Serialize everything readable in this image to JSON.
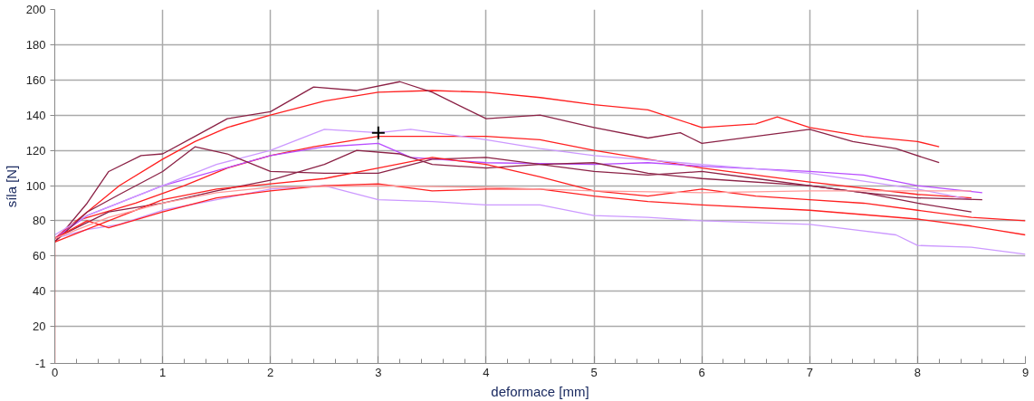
{
  "chart_data": {
    "type": "line",
    "xlabel": "deformace [mm]",
    "ylabel": "síla [N]",
    "xlim": [
      0,
      9
    ],
    "ylim": [
      -1,
      200
    ],
    "xticks": [
      0,
      1,
      2,
      3,
      4,
      5,
      6,
      7,
      8,
      9
    ],
    "yticks": [
      {
        "value": -1,
        "label": "-1"
      },
      20,
      40,
      60,
      80,
      100,
      120,
      140,
      160,
      180,
      200
    ],
    "grid": true,
    "marker": "none",
    "line_style": "solid",
    "series": [
      {
        "color": "#ff2020",
        "x": [
          0,
          0.3,
          0.6,
          1,
          1.3,
          1.6,
          2,
          2.5,
          3,
          3.5,
          4,
          4.5,
          5,
          5.5,
          6,
          6.5,
          6.7,
          7,
          7.5,
          8,
          8.2
        ],
        "values": [
          70,
          85,
          100,
          115,
          125,
          133,
          140,
          148,
          153,
          154,
          153,
          150,
          146,
          143,
          133,
          135,
          139,
          133,
          128,
          125,
          122
        ]
      },
      {
        "color": "#8b2246",
        "x": [
          0,
          0.3,
          0.5,
          0.8,
          1,
          1.3,
          1.6,
          2,
          2.4,
          2.8,
          3.2,
          3.5,
          4,
          4.5,
          5,
          5.5,
          5.8,
          6,
          6.5,
          7,
          7.4,
          7.8,
          8.2
        ],
        "values": [
          68,
          90,
          108,
          117,
          118,
          128,
          138,
          142,
          156,
          154,
          159,
          153,
          138,
          140,
          133,
          127,
          130,
          124,
          128,
          132,
          125,
          121,
          113
        ]
      },
      {
        "color": "#ff2020",
        "x": [
          0,
          0,
          0.2,
          0.75,
          1.2,
          1.6,
          2,
          2.4,
          2.8,
          3,
          4,
          4.5,
          5,
          5.5,
          6,
          7,
          8,
          8.5
        ],
        "values": [
          -1,
          70,
          80,
          90,
          100,
          110,
          117,
          122,
          126,
          128,
          128,
          126,
          120,
          115,
          110,
          102,
          95,
          93
        ]
      },
      {
        "color": "#b84dff",
        "x": [
          0,
          0.3,
          1,
          2,
          2.5,
          3,
          3.3,
          4,
          5,
          5.5,
          6,
          7,
          7.5,
          8,
          8.6
        ],
        "values": [
          70,
          83,
          100,
          117,
          122,
          124,
          116,
          113,
          112,
          113,
          111,
          108,
          106,
          100,
          96
        ]
      },
      {
        "color": "#cc99ff",
        "x": [
          0,
          0.3,
          1,
          1.5,
          2,
          2.5,
          3,
          3.3,
          4,
          4.5,
          5,
          6,
          7,
          8,
          8.5
        ],
        "values": [
          72,
          83,
          100,
          112,
          120,
          132,
          130,
          132,
          126,
          121,
          117,
          112,
          107,
          98,
          92
        ]
      },
      {
        "color": "#cc99ff",
        "x": [
          0,
          0.3,
          0.6,
          1,
          1.5,
          2,
          2.5,
          3,
          3.5,
          4,
          4.5,
          5,
          5.5,
          6,
          7,
          7.8,
          8,
          8.5,
          9
        ],
        "values": [
          70,
          75,
          78,
          86,
          92,
          98,
          100,
          92,
          91,
          89,
          89,
          83,
          82,
          80,
          78,
          72,
          66,
          65,
          61
        ]
      },
      {
        "color": "#8b2246",
        "x": [
          0,
          0.3,
          0.6,
          1,
          1.3,
          1.6,
          2,
          2.5,
          3,
          3.5,
          4,
          4.5,
          5,
          5.5,
          6,
          6.5,
          7,
          7.5,
          8,
          8.6
        ],
        "values": [
          68,
          85,
          95,
          108,
          122,
          118,
          108,
          107,
          107,
          115,
          116,
          112,
          108,
          106,
          108,
          104,
          100,
          96,
          93,
          92
        ]
      },
      {
        "color": "#8b2246",
        "x": [
          0,
          0.5,
          1,
          1.5,
          2,
          2.5,
          2.8,
          3.2,
          3.5,
          4,
          4.5,
          5,
          5.5,
          6,
          7,
          7.5,
          8,
          8.5
        ],
        "values": [
          70,
          85,
          90,
          97,
          103,
          112,
          120,
          118,
          112,
          110,
          112,
          113,
          107,
          104,
          100,
          96,
          90,
          85
        ]
      },
      {
        "color": "#ff2020",
        "x": [
          0,
          0.5,
          1,
          1.5,
          2,
          2.5,
          3,
          3.5,
          4,
          4.5,
          5,
          5.5,
          6,
          6.5,
          7,
          7.5,
          8,
          8.5,
          9
        ],
        "values": [
          68,
          80,
          92,
          98,
          101,
          104,
          110,
          116,
          112,
          105,
          97,
          94,
          98,
          94,
          92,
          90,
          86,
          82,
          80
        ]
      },
      {
        "color": "#ff2020",
        "x": [
          0,
          0.3,
          0.5,
          1,
          1.5,
          2,
          2.5,
          3,
          3.5,
          4,
          4.5,
          5,
          5.5,
          6,
          7,
          8,
          8.5,
          9
        ],
        "values": [
          70,
          80,
          76,
          85,
          93,
          97,
          100,
          101,
          97,
          98,
          98,
          94,
          91,
          89,
          86,
          81,
          77,
          72
        ]
      },
      {
        "color": "#ff9999",
        "x": [
          0,
          0.5,
          1,
          1.5,
          2,
          3,
          4,
          5,
          6,
          7,
          8,
          8.5
        ],
        "values": [
          70,
          82,
          90,
          96,
          99,
          100,
          99,
          97,
          96,
          97,
          97,
          97
        ]
      },
      {
        "type": "scatter",
        "marker": "cross",
        "color": "#000000",
        "x": [
          3
        ],
        "values": [
          130
        ]
      }
    ]
  }
}
